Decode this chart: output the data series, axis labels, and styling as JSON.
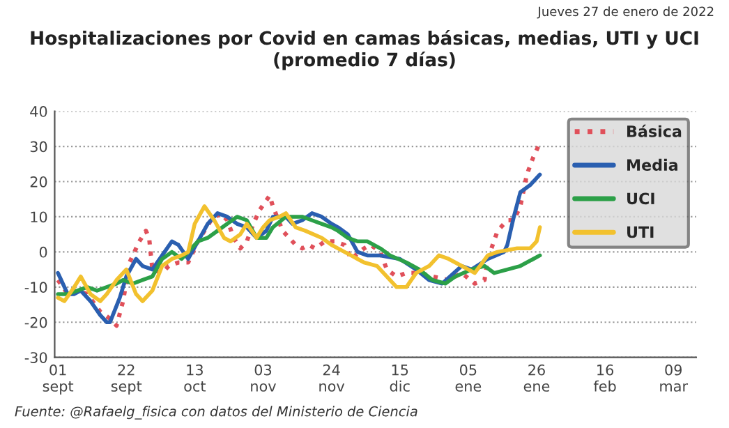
{
  "chart_data": {
    "type": "line",
    "title": "Hospitalizaciones por Covid en camas básicas, medias, UTI y UCI\n(promedio 7 días)",
    "annotations": [
      "Jueves 27 de enero de 2022",
      "Fuente: @Rafaelg_fisica con datos del Ministerio de Ciencia"
    ],
    "series": [
      {
        "name": "Básica",
        "color": "#e0505a",
        "line_style": "dotted",
        "x": [
          "2021-09-01",
          "2021-09-04",
          "2021-09-07",
          "2021-09-10",
          "2021-09-14",
          "2021-09-17",
          "2021-09-19",
          "2021-09-21",
          "2021-09-23",
          "2021-09-26",
          "2021-09-28",
          "2021-09-29",
          "2021-09-30",
          "2021-10-03",
          "2021-10-05",
          "2021-10-08",
          "2021-10-11",
          "2021-10-14",
          "2021-10-18",
          "2021-10-21",
          "2021-10-23",
          "2021-10-25",
          "2021-10-27",
          "2021-10-29",
          "2021-10-31",
          "2021-11-02",
          "2021-11-05",
          "2021-11-06",
          "2021-11-09",
          "2021-11-11",
          "2021-11-13",
          "2021-11-15",
          "2021-11-17",
          "2021-11-19",
          "2021-11-22",
          "2021-11-25",
          "2021-11-28",
          "2021-11-30",
          "2021-12-04",
          "2021-12-06",
          "2021-12-09",
          "2021-12-11",
          "2021-12-14",
          "2021-12-17",
          "2021-12-21",
          "2021-12-25",
          "2021-12-30",
          "2022-01-03",
          "2022-01-07",
          "2022-01-10",
          "2022-01-11",
          "2022-01-14",
          "2022-01-17",
          "2022-01-19",
          "2022-01-21",
          "2022-01-23",
          "2022-01-25",
          "2022-01-27"
        ],
        "values": [
          -8,
          -12,
          -11,
          -12,
          -17,
          -19,
          -21,
          -14,
          -3,
          3,
          6,
          4,
          -5,
          -6,
          -4,
          -3,
          -3,
          3,
          9,
          11,
          9,
          4,
          1,
          3,
          8,
          12,
          16,
          13,
          6,
          4,
          2,
          1,
          2,
          1,
          3,
          3,
          2,
          -2,
          1,
          2,
          0,
          -5,
          -7,
          -6,
          -6,
          -7,
          -8,
          -6,
          -9,
          -8,
          -2,
          6,
          9,
          9,
          13,
          22,
          27,
          31
        ]
      },
      {
        "name": "Media",
        "color": "#2a5fb0",
        "line_style": "solid",
        "x": [
          "2021-09-01",
          "2021-09-02",
          "2021-09-04",
          "2021-09-06",
          "2021-09-08",
          "2021-09-11",
          "2021-09-14",
          "2021-09-16",
          "2021-09-17",
          "2021-09-20",
          "2021-09-22",
          "2021-09-25",
          "2021-09-27",
          "2021-09-30",
          "2021-10-03",
          "2021-10-06",
          "2021-10-08",
          "2021-10-11",
          "2021-10-14",
          "2021-10-17",
          "2021-10-20",
          "2021-10-23",
          "2021-10-26",
          "2021-10-29",
          "2021-11-01",
          "2021-11-04",
          "2021-11-06",
          "2021-11-10",
          "2021-11-12",
          "2021-11-15",
          "2021-11-18",
          "2021-11-21",
          "2021-11-24",
          "2021-11-26",
          "2021-11-29",
          "2021-12-02",
          "2021-12-05",
          "2021-12-09",
          "2021-12-15",
          "2021-12-20",
          "2021-12-24",
          "2021-12-28",
          "2022-01-03",
          "2022-01-06",
          "2022-01-11",
          "2022-01-16",
          "2022-01-17",
          "2022-01-19",
          "2022-01-21",
          "2022-01-24",
          "2022-01-26",
          "2022-01-27"
        ],
        "values": [
          -6,
          -8,
          -12,
          -12,
          -11,
          -14,
          -18,
          -20,
          -20,
          -13,
          -7,
          -2,
          -4,
          -5,
          -1,
          3,
          2,
          -2,
          3,
          8,
          11,
          10,
          8,
          7,
          4,
          6,
          10,
          10,
          8,
          9,
          11,
          10,
          8,
          7,
          5,
          0,
          -1,
          -1,
          -2,
          -5,
          -8,
          -9,
          -4,
          -5,
          -2,
          0,
          2,
          10,
          17,
          19,
          21,
          22
        ]
      },
      {
        "name": "UCI",
        "color": "#2ca048",
        "line_style": "solid",
        "x": [
          "2021-09-01",
          "2021-09-04",
          "2021-09-07",
          "2021-09-10",
          "2021-09-13",
          "2021-09-16",
          "2021-09-19",
          "2021-09-21",
          "2021-09-24",
          "2021-09-27",
          "2021-09-30",
          "2021-10-03",
          "2021-10-06",
          "2021-10-09",
          "2021-10-11",
          "2021-10-14",
          "2021-10-17",
          "2021-10-20",
          "2021-10-23",
          "2021-10-26",
          "2021-10-29",
          "2021-11-01",
          "2021-11-04",
          "2021-11-06",
          "2021-11-10",
          "2021-11-12",
          "2021-11-15",
          "2021-11-18",
          "2021-11-21",
          "2021-11-24",
          "2021-11-26",
          "2021-11-29",
          "2021-12-02",
          "2021-12-05",
          "2021-12-09",
          "2021-12-12",
          "2021-12-17",
          "2021-12-21",
          "2021-12-25",
          "2021-12-29",
          "2022-01-01",
          "2022-01-06",
          "2022-01-10",
          "2022-01-13",
          "2022-01-17",
          "2022-01-21",
          "2022-01-25",
          "2022-01-27"
        ],
        "values": [
          -12,
          -12,
          -11,
          -10,
          -11,
          -10,
          -9,
          -8,
          -9,
          -8,
          -7,
          -2,
          0,
          -2,
          0,
          3,
          4,
          6,
          8,
          10,
          9,
          4,
          4,
          7,
          10,
          10,
          10,
          9,
          8,
          7,
          6,
          4,
          3,
          3,
          1,
          -1,
          -3,
          -5,
          -8,
          -9,
          -7,
          -5,
          -4,
          -6,
          -5,
          -4,
          -2,
          -1
        ]
      },
      {
        "name": "UTI",
        "color": "#f2c12e",
        "line_style": "solid",
        "x": [
          "2021-09-01",
          "2021-09-03",
          "2021-09-06",
          "2021-09-08",
          "2021-09-11",
          "2021-09-14",
          "2021-09-16",
          "2021-09-19",
          "2021-09-22",
          "2021-09-25",
          "2021-09-27",
          "2021-09-30",
          "2021-10-03",
          "2021-10-06",
          "2021-10-09",
          "2021-10-11",
          "2021-10-13",
          "2021-10-16",
          "2021-10-19",
          "2021-10-22",
          "2021-10-24",
          "2021-10-27",
          "2021-10-29",
          "2021-11-01",
          "2021-11-03",
          "2021-11-05",
          "2021-11-08",
          "2021-11-10",
          "2021-11-13",
          "2021-11-16",
          "2021-11-21",
          "2021-11-24",
          "2021-11-26",
          "2021-11-30",
          "2021-12-04",
          "2021-12-08",
          "2021-12-14",
          "2021-12-17",
          "2021-12-20",
          "2021-12-24",
          "2021-12-27",
          "2021-12-30",
          "2022-01-03",
          "2022-01-07",
          "2022-01-11",
          "2022-01-14",
          "2022-01-20",
          "2022-01-24",
          "2022-01-26",
          "2022-01-27"
        ],
        "values": [
          -13,
          -14,
          -10,
          -7,
          -12,
          -14,
          -12,
          -8,
          -5,
          -12,
          -14,
          -11,
          -4,
          -2,
          -1,
          0,
          8,
          13,
          9,
          4,
          3,
          5,
          8,
          4,
          7,
          9,
          10,
          11,
          7,
          6,
          4,
          2,
          1,
          -1,
          -3,
          -4,
          -10,
          -10,
          -6,
          -4,
          -1,
          -2,
          -4,
          -6,
          -1,
          0,
          1,
          1,
          3,
          7
        ]
      }
    ],
    "xlim": [
      "2021-08-31",
      "2022-03-16"
    ],
    "xticks": [
      {
        "value": "2021-09-01",
        "label": "01\nsept"
      },
      {
        "value": "2021-09-22",
        "label": "22\nsept"
      },
      {
        "value": "2021-10-13",
        "label": "13\noct"
      },
      {
        "value": "2021-11-03",
        "label": "03\nnov"
      },
      {
        "value": "2021-11-24",
        "label": "24\nnov"
      },
      {
        "value": "2021-12-15",
        "label": "15\ndic"
      },
      {
        "value": "2022-01-05",
        "label": "05\nene"
      },
      {
        "value": "2022-01-26",
        "label": "26\nene"
      },
      {
        "value": "2022-02-16",
        "label": "16\nfeb"
      },
      {
        "value": "2022-03-09",
        "label": "09\nmar"
      }
    ],
    "ylim": [
      -30,
      40
    ],
    "yticks": [
      -30,
      -20,
      -10,
      0,
      10,
      20,
      30,
      40
    ],
    "grid": "y",
    "legend": "top right"
  }
}
